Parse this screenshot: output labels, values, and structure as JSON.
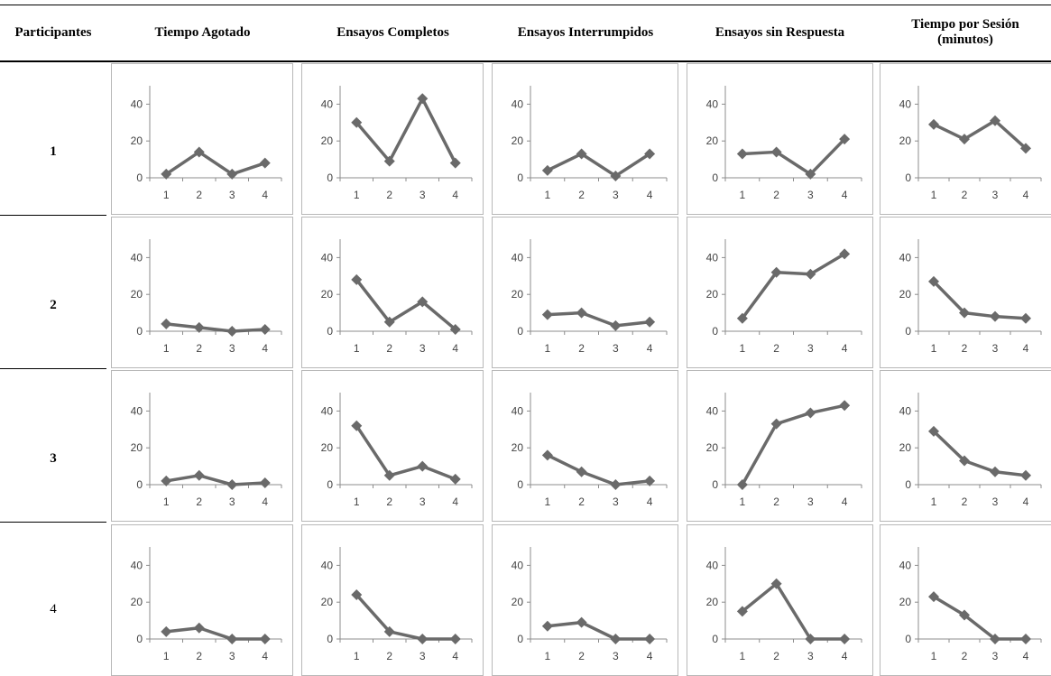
{
  "header": {
    "participants_label": "Participantes",
    "columns": [
      "Tiempo Agotado",
      "Ensayos Completos",
      "Ensayos Interrumpidos",
      "Ensayos sin Respuesta",
      "Tiempo por Sesión\n(minutos)"
    ]
  },
  "rows": [
    "1",
    "2",
    "3",
    "4"
  ],
  "colors": {
    "line": "#6a6a6a",
    "panel_border": "#b8b8b8",
    "axis": "#8c8c8c"
  },
  "chart_data": {
    "type": "line",
    "x": [
      "1",
      "2",
      "3",
      "4"
    ],
    "ylim": [
      0,
      50
    ],
    "y_ticks": [
      "0",
      "20",
      "40"
    ],
    "grid": false,
    "panels": [
      [
        [
          2,
          14,
          2,
          8
        ],
        [
          30,
          9,
          43,
          8
        ],
        [
          4,
          13,
          1,
          13
        ],
        [
          13,
          14,
          2,
          21
        ],
        [
          29,
          21,
          31,
          16
        ]
      ],
      [
        [
          4,
          2,
          0,
          1
        ],
        [
          28,
          5,
          16,
          1
        ],
        [
          9,
          10,
          3,
          5
        ],
        [
          7,
          32,
          31,
          42
        ],
        [
          27,
          10,
          8,
          7
        ]
      ],
      [
        [
          2,
          5,
          0,
          1
        ],
        [
          32,
          5,
          10,
          3
        ],
        [
          16,
          7,
          0,
          2
        ],
        [
          0,
          33,
          39,
          43
        ],
        [
          29,
          13,
          7,
          5
        ]
      ],
      [
        [
          4,
          6,
          0,
          0
        ],
        [
          24,
          4,
          0,
          0
        ],
        [
          7,
          9,
          0,
          0
        ],
        [
          15,
          30,
          0,
          0
        ],
        [
          23,
          13,
          0,
          0
        ]
      ]
    ]
  }
}
